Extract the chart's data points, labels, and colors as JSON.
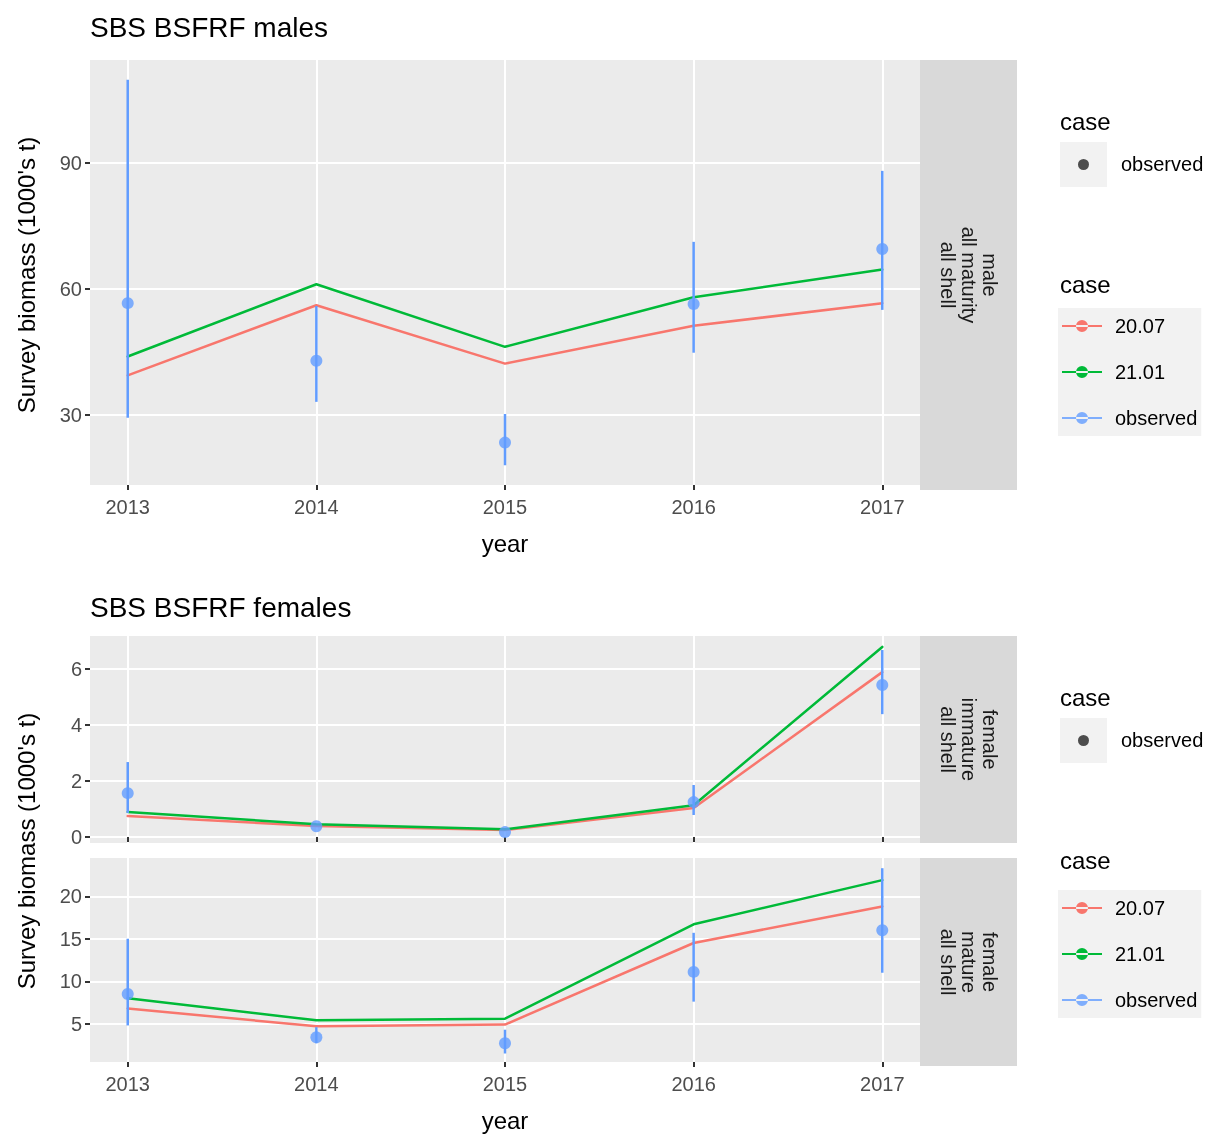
{
  "chart_data": [
    {
      "type": "line",
      "title": "SBS BSFRF males",
      "xlabel": "year",
      "ylabel": "Survey biomass (1000's t)",
      "legend_title": "case",
      "legend": "right",
      "grid": true,
      "annotations": [
        "male\nall maturity\nall shell",
        "case",
        "observed"
      ],
      "x": [
        2013,
        2014,
        2015,
        2016,
        2017
      ],
      "xlim": [
        2012.8,
        2017.2
      ],
      "xticks": [
        2013,
        2014,
        2015,
        2016,
        2017
      ],
      "ylim": [
        13.3,
        114.5
      ],
      "yticks": [
        30,
        60,
        90
      ],
      "series": [
        {
          "name": "20.07",
          "color": "#f8766d",
          "values": [
            39.4,
            56.1,
            42.2,
            51.2,
            56.6
          ]
        },
        {
          "name": "21.01",
          "color": "#00ba38",
          "values": [
            43.9,
            61.1,
            46.2,
            58.0,
            64.6
          ]
        },
        {
          "name": "observed",
          "type": "scatter",
          "marker": "circle",
          "color": "#619cff",
          "values": [
            56.6,
            42.9,
            23.4,
            56.4,
            69.5
          ],
          "errors": [
            [
              29.3,
              109.8
            ],
            [
              33.1,
              55.9
            ],
            [
              18.0,
              30.2
            ],
            [
              44.8,
              71.2
            ],
            [
              55.0,
              88.1
            ]
          ]
        }
      ]
    },
    {
      "type": "line",
      "title": "SBS BSFRF females",
      "ylabel": "Survey biomass (1000's t)",
      "grid": true,
      "tick_labels": "y",
      "annotations": [
        "female\nimmature\nall shell",
        "case",
        "observed"
      ],
      "x": [
        2013,
        2014,
        2015,
        2016,
        2017
      ],
      "xlim": [
        2012.8,
        2017.2
      ],
      "xticks": [
        2013,
        2014,
        2015,
        2016,
        2017
      ],
      "ylim": [
        -0.21,
        7.18
      ],
      "yticks": [
        0,
        2,
        4,
        6
      ],
      "series": [
        {
          "color": "#f8766d",
          "values": [
            0.75,
            0.4,
            0.25,
            1.04,
            5.89
          ]
        },
        {
          "color": "#00ba38",
          "values": [
            0.9,
            0.46,
            0.28,
            1.14,
            6.79
          ]
        },
        {
          "type": "scatter",
          "marker": "circle",
          "color": "#619cff",
          "values": [
            1.57,
            0.39,
            0.18,
            1.25,
            5.43
          ],
          "errors": [
            [
              0.86,
              2.68
            ],
            null,
            null,
            [
              0.79,
              1.86
            ],
            [
              4.39,
              6.68
            ]
          ]
        }
      ]
    },
    {
      "type": "line",
      "xlabel": "year",
      "legend_title": "case",
      "legend": "right",
      "grid": true,
      "annotations": [
        "female\nmature\nall shell"
      ],
      "x": [
        2013,
        2014,
        2015,
        2016,
        2017
      ],
      "xlim": [
        2012.8,
        2017.2
      ],
      "xticks": [
        2013,
        2014,
        2015,
        2016,
        2017
      ],
      "ylim": [
        0.5,
        24.5
      ],
      "yticks": [
        5,
        10,
        15,
        20
      ],
      "series": [
        {
          "name": "20.07",
          "color": "#f8766d",
          "values": [
            6.8,
            4.7,
            4.9,
            14.5,
            18.8
          ]
        },
        {
          "name": "21.01",
          "color": "#00ba38",
          "values": [
            8.0,
            5.4,
            5.6,
            16.7,
            21.9
          ]
        },
        {
          "name": "observed",
          "type": "scatter",
          "marker": "circle",
          "color": "#619cff",
          "values": [
            8.5,
            3.4,
            2.7,
            11.1,
            16.0
          ],
          "errors": [
            [
              4.8,
              15.0
            ],
            [
              2.7,
              4.6
            ],
            [
              1.5,
              4.3
            ],
            [
              7.6,
              15.7
            ],
            [
              11.0,
              23.3
            ]
          ]
        }
      ]
    }
  ]
}
